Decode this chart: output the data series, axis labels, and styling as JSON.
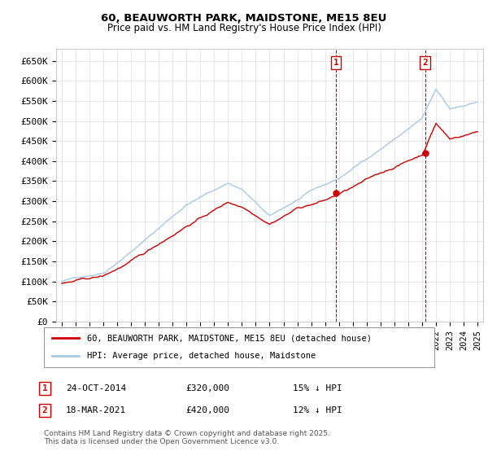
{
  "title": "60, BEAUWORTH PARK, MAIDSTONE, ME15 8EU",
  "subtitle": "Price paid vs. HM Land Registry's House Price Index (HPI)",
  "ylabel_ticks": [
    "£0",
    "£50K",
    "£100K",
    "£150K",
    "£200K",
    "£250K",
    "£300K",
    "£350K",
    "£400K",
    "£450K",
    "£500K",
    "£550K",
    "£600K",
    "£650K"
  ],
  "ytick_values": [
    0,
    50000,
    100000,
    150000,
    200000,
    250000,
    300000,
    350000,
    400000,
    450000,
    500000,
    550000,
    600000,
    650000
  ],
  "ylim": [
    0,
    680000
  ],
  "hpi_color": "#a8c8e8",
  "price_color": "#cc0000",
  "marker1_x": 2014.79,
  "marker2_x": 2021.21,
  "marker1_y": 320000,
  "marker2_y": 420000,
  "legend_line1": "60, BEAUWORTH PARK, MAIDSTONE, ME15 8EU (detached house)",
  "legend_line2": "HPI: Average price, detached house, Maidstone",
  "footer": "Contains HM Land Registry data © Crown copyright and database right 2025.\nThis data is licensed under the Open Government Licence v3.0.",
  "background_color": "#ffffff",
  "grid_color": "#dddddd",
  "start_year": 1995,
  "end_year": 2025,
  "xlim_left": 1994.6,
  "xlim_right": 2025.4
}
